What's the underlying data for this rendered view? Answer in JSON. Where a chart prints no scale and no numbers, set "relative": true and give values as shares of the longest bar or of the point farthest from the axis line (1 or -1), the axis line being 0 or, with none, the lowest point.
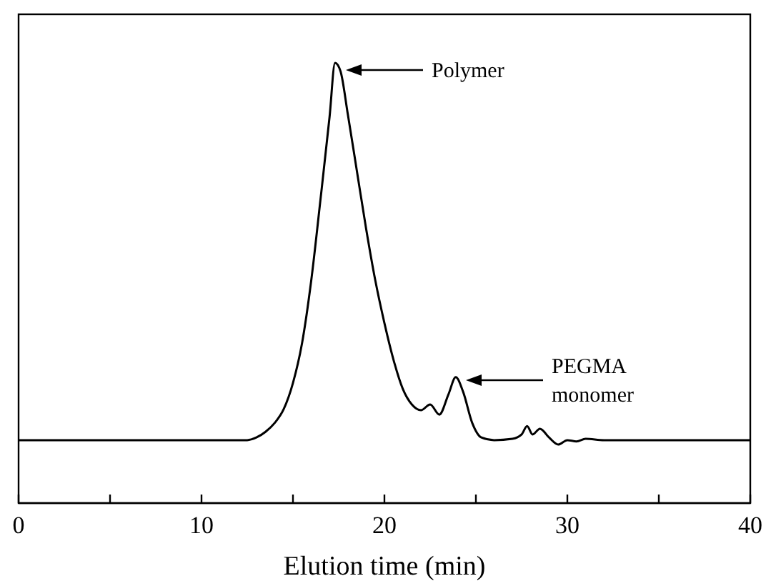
{
  "chart_data": {
    "type": "line",
    "relative": true,
    "xlabel": "Elution time (min)",
    "xlim": [
      0,
      40
    ],
    "xticks": [
      0,
      {
        "value": 5,
        "label": null
      },
      10,
      {
        "value": 15,
        "label": null
      },
      20,
      {
        "value": 25,
        "label": null
      },
      30,
      {
        "value": 35,
        "label": null
      },
      40
    ],
    "marker": "none",
    "line_style": "solid",
    "grid": false,
    "series": [
      {
        "color": "#000000",
        "x": [
          0,
          12.5,
          13,
          13.5,
          14,
          14.5,
          15,
          15.5,
          16,
          16.5,
          17,
          17.3,
          17.6,
          18,
          18.5,
          19,
          19.5,
          20,
          20.5,
          21,
          21.5,
          22,
          22.5,
          23,
          23.5,
          23.9,
          24.3,
          24.8,
          25.3,
          26,
          27,
          27.5,
          27.8,
          28.1,
          28.5,
          29,
          29.5,
          30,
          30.5,
          31,
          32,
          40
        ],
        "values": [
          0.143,
          0.143,
          0.149,
          0.162,
          0.182,
          0.214,
          0.273,
          0.364,
          0.506,
          0.688,
          0.877,
          1,
          0.981,
          0.883,
          0.753,
          0.623,
          0.506,
          0.409,
          0.325,
          0.26,
          0.224,
          0.211,
          0.224,
          0.201,
          0.247,
          0.286,
          0.253,
          0.182,
          0.149,
          0.143,
          0.146,
          0.156,
          0.175,
          0.156,
          0.169,
          0.149,
          0.133,
          0.143,
          0.14,
          0.146,
          0.143,
          0.143
        ]
      }
    ],
    "annotations": [
      "Polymer",
      "PEGMA\nmonomer"
    ]
  }
}
